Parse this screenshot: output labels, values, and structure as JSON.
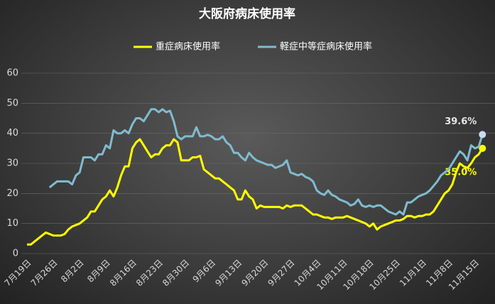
{
  "chart_data": {
    "type": "line",
    "title": "大阪府病床使用率",
    "categories": [
      "7月19日",
      null,
      null,
      null,
      null,
      null,
      null,
      "7月26日",
      null,
      null,
      null,
      null,
      null,
      null,
      "8月2日",
      null,
      null,
      null,
      null,
      null,
      null,
      "8月9日",
      null,
      null,
      null,
      null,
      null,
      null,
      "8月16日",
      null,
      null,
      null,
      null,
      null,
      null,
      "8月23日",
      null,
      null,
      null,
      null,
      null,
      null,
      "8月30日",
      null,
      null,
      null,
      null,
      null,
      null,
      "9月6日",
      null,
      null,
      null,
      null,
      null,
      null,
      "9月13日",
      null,
      null,
      null,
      null,
      null,
      null,
      "9月20日",
      null,
      null,
      null,
      null,
      null,
      null,
      "9月27日",
      null,
      null,
      null,
      null,
      null,
      null,
      "10月4日",
      null,
      null,
      null,
      null,
      null,
      null,
      "10月11日",
      null,
      null,
      null,
      null,
      null,
      null,
      "10月18日",
      null,
      null,
      null,
      null,
      null,
      null,
      "10月25日",
      null,
      null,
      null,
      null,
      null,
      null,
      "11月1日",
      null,
      null,
      null,
      null,
      null,
      null,
      "11月8日",
      null,
      null,
      null,
      null,
      null,
      null,
      "11月15日",
      null,
      null
    ],
    "series": [
      {
        "name": "重症病床使用率",
        "color": "#ffff00",
        "values": [
          3,
          3,
          4,
          5,
          6,
          7,
          6.5,
          6,
          6,
          6,
          6.5,
          8,
          9,
          9.5,
          10,
          11,
          12,
          14,
          14,
          16,
          18,
          19,
          21,
          19,
          22,
          26,
          29,
          29,
          35,
          37,
          38,
          36,
          34,
          32,
          33,
          33,
          35,
          36,
          36,
          38,
          37,
          31,
          31,
          31,
          32,
          32,
          32.5,
          28,
          27,
          26,
          25,
          25,
          24,
          23,
          22,
          21,
          18,
          18,
          21,
          19,
          18,
          15,
          16,
          15.5,
          15.5,
          15.5,
          15.5,
          15.5,
          15,
          16,
          15.5,
          16,
          16,
          16,
          15,
          14,
          13,
          13,
          12.5,
          12,
          12,
          11.5,
          12,
          12,
          12,
          12.5,
          12,
          11.5,
          11,
          10.5,
          10,
          9,
          10,
          8,
          9,
          9.5,
          10,
          10.5,
          11,
          11,
          11.5,
          12.5,
          12.5,
          12,
          12.5,
          12.5,
          13,
          13,
          14,
          16,
          18,
          20,
          21,
          23,
          27,
          30,
          29,
          28.5,
          30,
          32,
          33,
          35
        ],
        "value_labels": [
          null,
          null,
          null,
          null,
          null,
          null,
          null,
          null,
          null,
          null,
          null,
          null,
          null,
          null,
          null,
          null,
          null,
          null,
          null,
          null,
          null,
          null,
          null,
          null,
          null,
          null,
          null,
          null,
          null,
          null,
          null,
          null,
          null,
          null,
          null,
          null,
          null,
          null,
          null,
          null,
          null,
          null,
          null,
          null,
          null,
          null,
          null,
          null,
          null,
          null,
          null,
          null,
          null,
          null,
          null,
          null,
          null,
          null,
          null,
          null,
          null,
          null,
          null,
          null,
          null,
          null,
          null,
          null,
          null,
          null,
          null,
          null,
          null,
          null,
          null,
          null,
          null,
          null,
          null,
          null,
          null,
          null,
          null,
          null,
          null,
          null,
          null,
          null,
          null,
          null,
          null,
          null,
          null,
          null,
          null,
          null,
          null,
          null,
          null,
          null,
          null,
          null,
          null,
          null,
          null,
          null,
          null,
          null,
          null,
          null,
          null,
          null,
          null,
          null,
          null,
          null,
          null,
          null,
          null,
          null,
          null,
          "35.0%"
        ]
      },
      {
        "name": "軽症中等症病床使用率",
        "color": "#7fbccf",
        "values": [
          null,
          null,
          null,
          null,
          null,
          null,
          22,
          23,
          24,
          24,
          24,
          24,
          23,
          26,
          27,
          32,
          32,
          32,
          31,
          33,
          33,
          36,
          35,
          41,
          40,
          40,
          41,
          40,
          43,
          45,
          45,
          44,
          46,
          48,
          48,
          47,
          48,
          47,
          47.5,
          44,
          39,
          38,
          39,
          39,
          39,
          42,
          39,
          39,
          39.5,
          39,
          38,
          38,
          39,
          37,
          36,
          33.5,
          33.5,
          32,
          31,
          33.5,
          32,
          31,
          30.5,
          30,
          29.5,
          29.5,
          28.5,
          29,
          29.5,
          31,
          27,
          26.5,
          26,
          26.5,
          25.5,
          25,
          24,
          21,
          20,
          19.5,
          21,
          19.5,
          19,
          18,
          17.5,
          17,
          16,
          16.5,
          18,
          16,
          15.5,
          16,
          15.5,
          16,
          16,
          15,
          14,
          13.5,
          13,
          14,
          13,
          17,
          17,
          18,
          19,
          19.5,
          20,
          21,
          22.5,
          24,
          26,
          27,
          28,
          30,
          32,
          34,
          33,
          31,
          36,
          35,
          35.5,
          39.6
        ],
        "value_labels": [
          null,
          null,
          null,
          null,
          null,
          null,
          null,
          null,
          null,
          null,
          null,
          null,
          null,
          null,
          null,
          null,
          null,
          null,
          null,
          null,
          null,
          null,
          null,
          null,
          null,
          null,
          null,
          null,
          null,
          null,
          null,
          null,
          null,
          null,
          null,
          null,
          null,
          null,
          null,
          null,
          null,
          null,
          null,
          null,
          null,
          null,
          null,
          null,
          null,
          null,
          null,
          null,
          null,
          null,
          null,
          null,
          null,
          null,
          null,
          null,
          null,
          null,
          null,
          null,
          null,
          null,
          null,
          null,
          null,
          null,
          null,
          null,
          null,
          null,
          null,
          null,
          null,
          null,
          null,
          null,
          null,
          null,
          null,
          null,
          null,
          null,
          null,
          null,
          null,
          null,
          null,
          null,
          null,
          null,
          null,
          null,
          null,
          null,
          null,
          null,
          null,
          null,
          null,
          null,
          null,
          null,
          null,
          null,
          null,
          null,
          null,
          null,
          null,
          null,
          null,
          null,
          null,
          null,
          null,
          null,
          null,
          "39.6%"
        ]
      }
    ],
    "ylim": [
      0,
      60
    ],
    "yticks": [
      0,
      10,
      20,
      30,
      40,
      50,
      60
    ],
    "grid": true,
    "legend": "top"
  }
}
